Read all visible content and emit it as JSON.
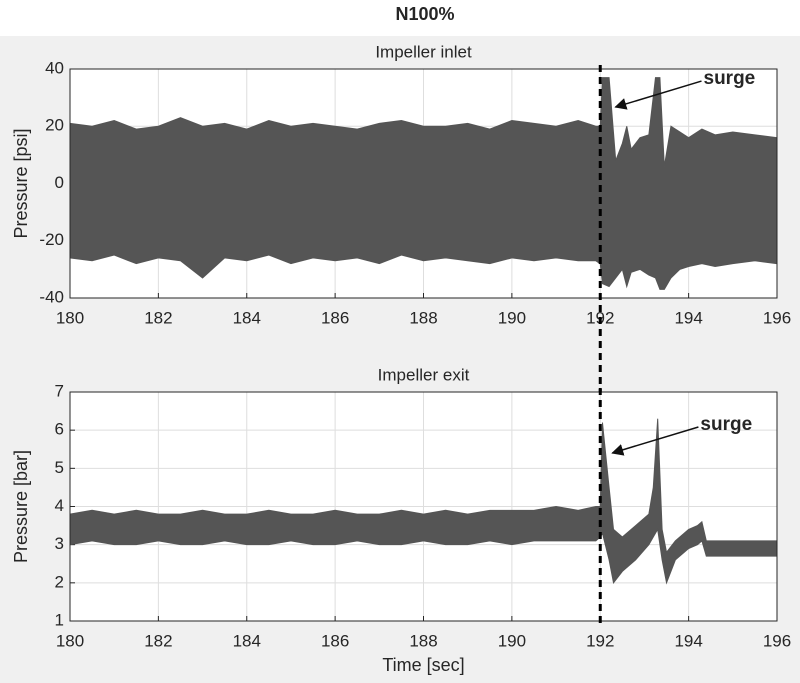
{
  "title": "N100%",
  "chart_data": [
    {
      "type": "range",
      "title": "Impeller inlet",
      "ylabel": "Pressure [psi]",
      "x": [
        180,
        180.5,
        181,
        181.5,
        182,
        182.5,
        183,
        183.5,
        184,
        184.5,
        185,
        185.5,
        186,
        186.5,
        187,
        187.5,
        188,
        188.5,
        189,
        189.5,
        190,
        190.5,
        191,
        191.5,
        191.9,
        192.0,
        192.05,
        192.2,
        192.35,
        192.5,
        192.6,
        192.7,
        192.9,
        193.1,
        193.25,
        193.35,
        193.45,
        193.6,
        193.8,
        194.0,
        194.3,
        194.6,
        195.0,
        195.5,
        196.0
      ],
      "high": [
        21,
        20,
        22,
        19,
        20,
        23,
        20,
        21,
        19,
        22,
        20,
        21,
        20,
        19,
        21,
        22,
        20,
        20,
        21,
        19,
        22,
        21,
        20,
        22,
        20,
        20,
        37,
        37,
        8,
        14,
        20,
        12,
        16,
        17,
        37,
        37,
        6,
        20,
        18,
        16,
        19,
        17,
        18,
        17,
        16
      ],
      "low": [
        -26,
        -27,
        -25,
        -28,
        -26,
        -27,
        -33,
        -26,
        -27,
        -25,
        -28,
        -26,
        -27,
        -26,
        -28,
        -25,
        -27,
        -26,
        -27,
        -28,
        -26,
        -27,
        -26,
        -27,
        -27,
        -28,
        -35,
        -36,
        -33,
        -30,
        -36,
        -31,
        -30,
        -32,
        -33,
        -37,
        -37,
        -33,
        -30,
        -29,
        -28,
        -29,
        -28,
        -27,
        -28
      ],
      "color": "#555555",
      "xlim": [
        180,
        196
      ],
      "xticks": [
        180,
        182,
        184,
        186,
        188,
        190,
        192,
        194,
        196
      ],
      "ylim": [
        -40,
        40
      ],
      "yticks": [
        -40,
        -20,
        0,
        20,
        40
      ],
      "grid": true,
      "vline": 192,
      "annotations": [
        {
          "text": "surge",
          "x": 192.3,
          "y": 26
        }
      ]
    },
    {
      "type": "range",
      "title": "Impeller exit",
      "ylabel": "Pressure [bar]",
      "xlabel": "Time [sec]",
      "x": [
        180,
        180.5,
        181,
        181.5,
        182,
        182.5,
        183,
        183.5,
        184,
        184.5,
        185,
        185.5,
        186,
        186.5,
        187,
        187.5,
        188,
        188.5,
        189,
        189.5,
        190,
        190.5,
        191,
        191.5,
        191.9,
        192.0,
        192.05,
        192.2,
        192.3,
        192.5,
        192.8,
        193.1,
        193.2,
        193.3,
        193.4,
        193.5,
        193.7,
        194.0,
        194.2,
        194.3,
        194.4,
        194.6,
        195.0,
        195.5,
        196.0
      ],
      "high": [
        3.8,
        3.9,
        3.8,
        3.9,
        3.8,
        3.8,
        3.9,
        3.8,
        3.8,
        3.9,
        3.8,
        3.8,
        3.9,
        3.8,
        3.8,
        3.9,
        3.8,
        3.9,
        3.8,
        3.9,
        3.9,
        3.9,
        4.0,
        3.9,
        4.0,
        4.0,
        6.2,
        4.5,
        3.4,
        3.2,
        3.5,
        3.8,
        4.5,
        6.3,
        3.4,
        2.8,
        3.1,
        3.4,
        3.5,
        3.6,
        3.1,
        3.1,
        3.1,
        3.1,
        3.1
      ],
      "low": [
        3.0,
        3.1,
        3.0,
        3.0,
        3.1,
        3.0,
        3.0,
        3.1,
        3.0,
        3.0,
        3.1,
        3.0,
        3.0,
        3.1,
        3.0,
        3.0,
        3.1,
        3.0,
        3.0,
        3.1,
        3.0,
        3.1,
        3.1,
        3.1,
        3.1,
        3.2,
        3.3,
        2.6,
        2.0,
        2.3,
        2.6,
        3.0,
        3.2,
        3.4,
        2.6,
        2.0,
        2.6,
        2.9,
        3.0,
        3.1,
        2.7,
        2.7,
        2.7,
        2.7,
        2.7
      ],
      "color": "#555555",
      "xlim": [
        180,
        196
      ],
      "xticks": [
        180,
        182,
        184,
        186,
        188,
        190,
        192,
        194,
        196
      ],
      "ylim": [
        1,
        7
      ],
      "yticks": [
        1,
        2,
        3,
        4,
        5,
        6,
        7
      ],
      "grid": true,
      "vline": 192,
      "annotations": [
        {
          "text": "surge",
          "x": 192.23,
          "y": 5.35
        }
      ]
    }
  ]
}
